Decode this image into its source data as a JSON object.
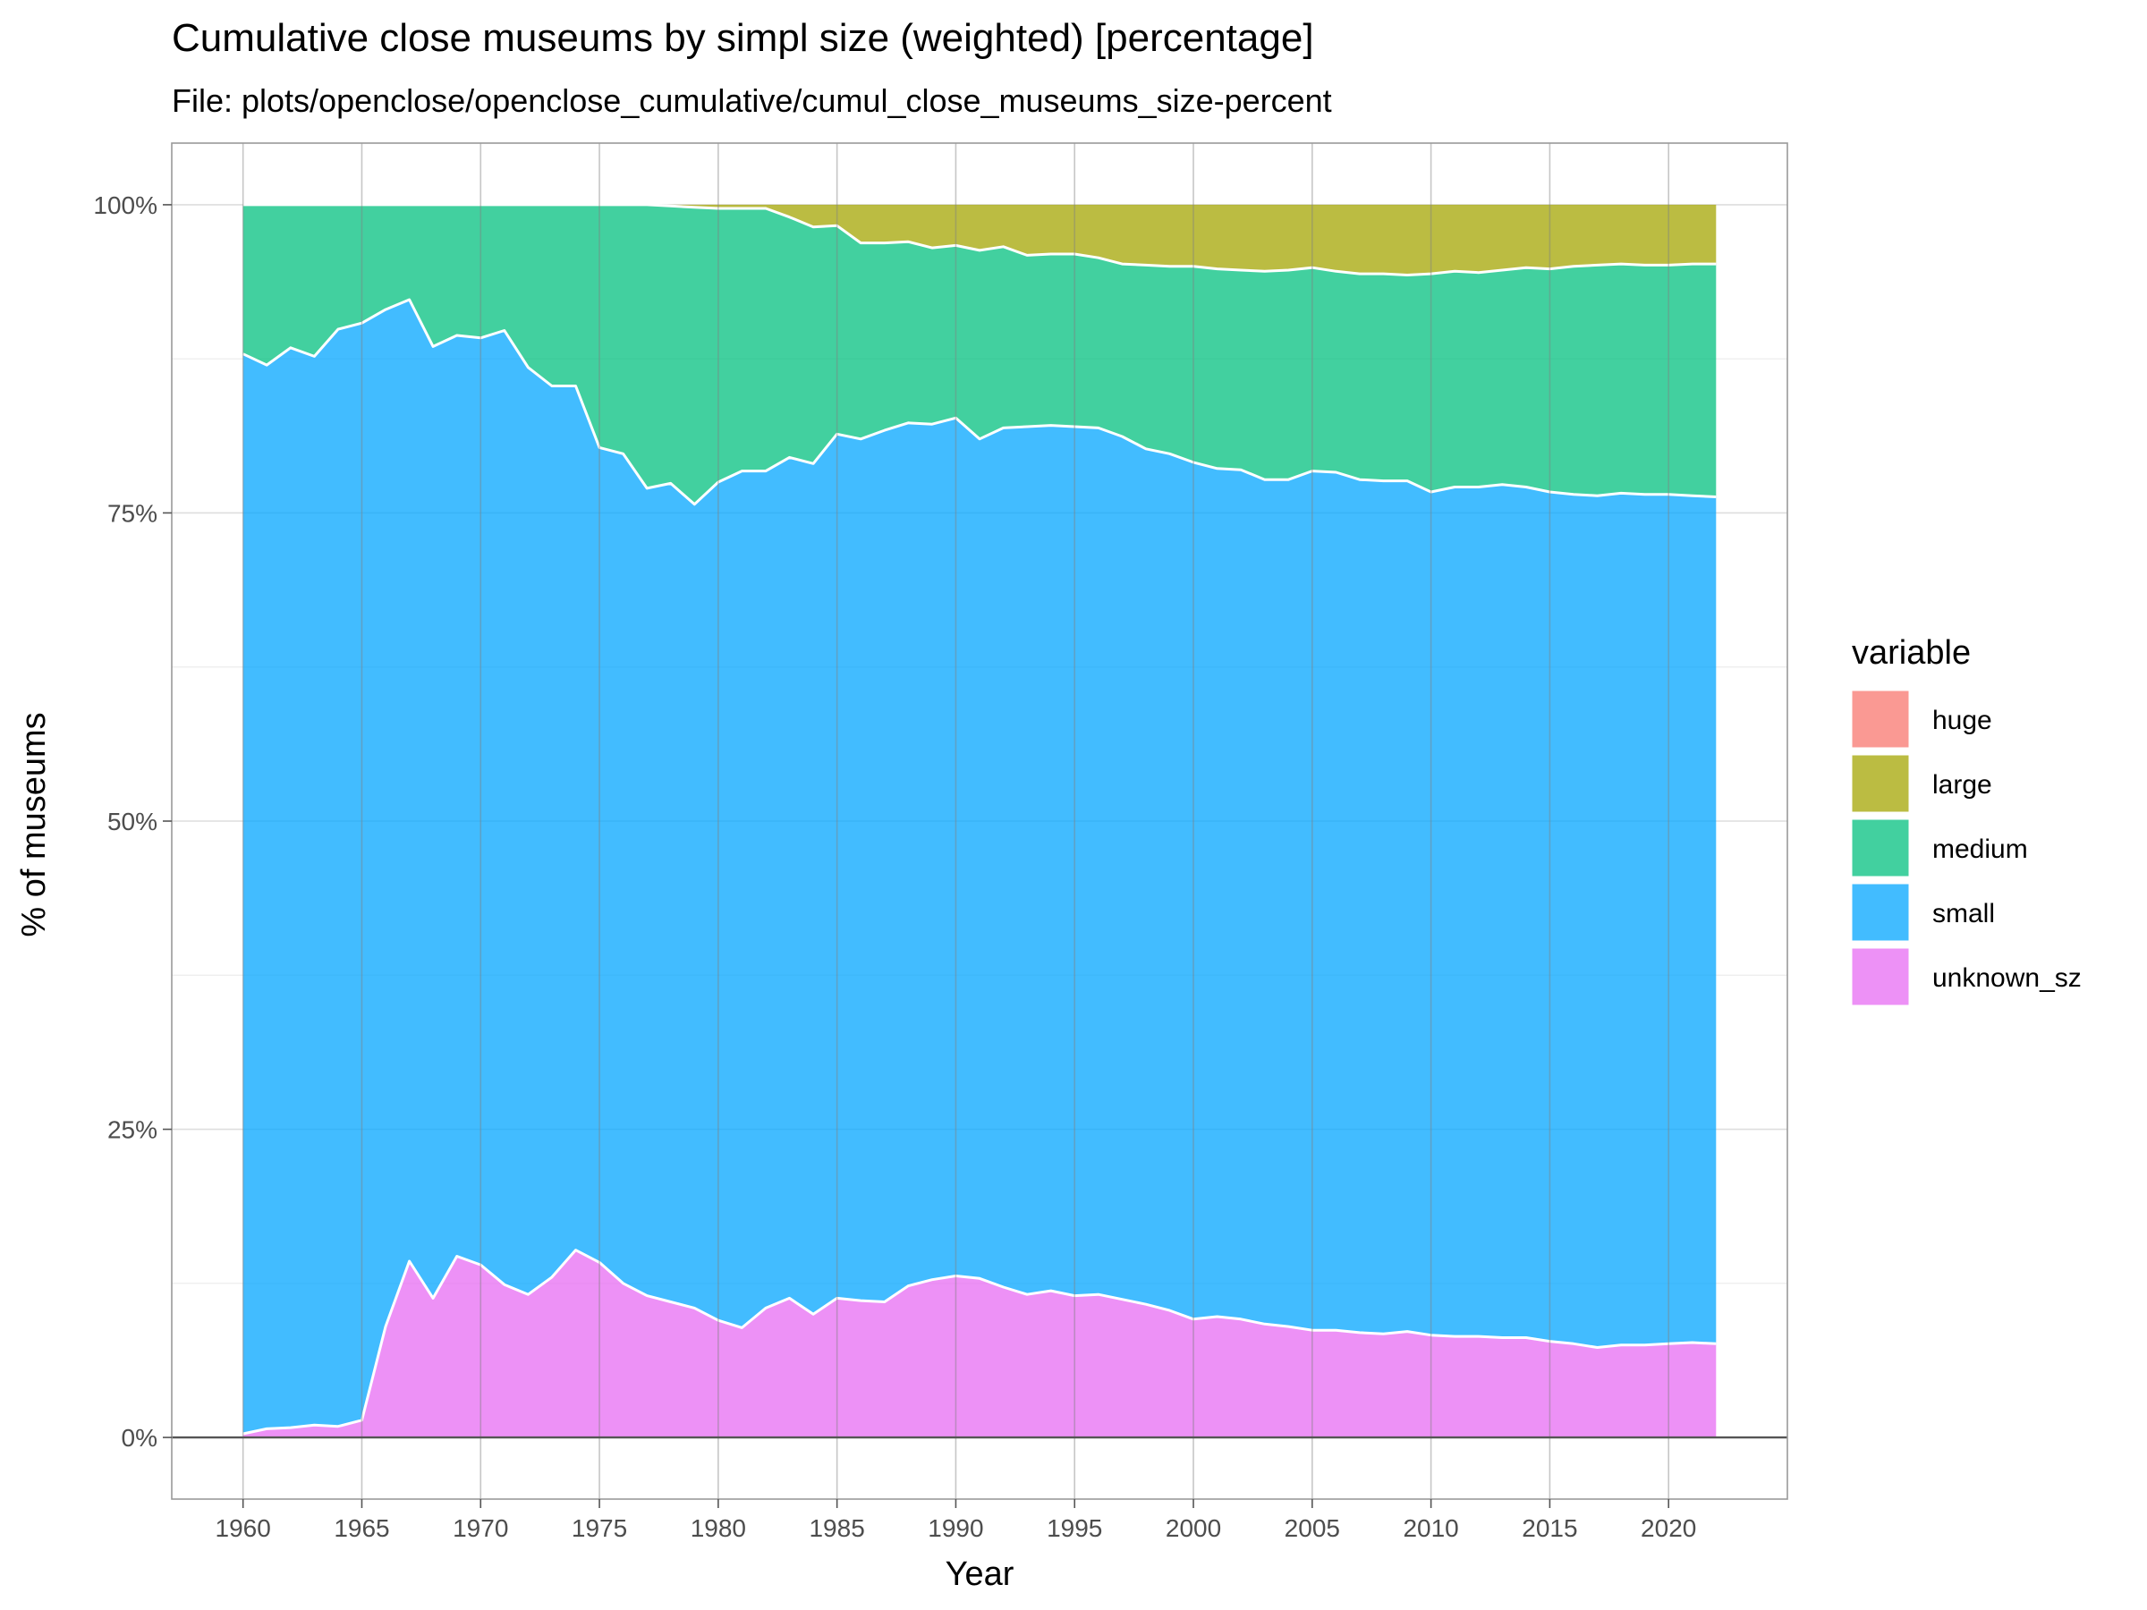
{
  "chart_data": {
    "type": "area",
    "stacked": true,
    "normalized": true,
    "title": "Cumulative close museums by simpl size (weighted) [percentage]",
    "subtitle": "File: plots/openclose/openclose_cumulative/cumul_close_museums_size-percent",
    "xlabel": "Year",
    "ylabel": "% of museums",
    "xlim": [
      1957,
      2025
    ],
    "ylim": [
      -5,
      105
    ],
    "x_ticks": [
      1960,
      1965,
      1970,
      1975,
      1980,
      1985,
      1990,
      1995,
      2000,
      2005,
      2010,
      2015,
      2020
    ],
    "y_ticks": [
      0,
      25,
      50,
      75,
      100
    ],
    "y_tick_labels": [
      "0%",
      "25%",
      "50%",
      "75%",
      "100%"
    ],
    "legend_title": "variable",
    "legend_position": "right",
    "colors": {
      "huge": "#F8766D",
      "large": "#A3A500",
      "medium": "#00BF7D",
      "small": "#00A5FF",
      "unknown_sz": "#E76BF3"
    },
    "legend_order": [
      "huge",
      "large",
      "medium",
      "small",
      "unknown_sz"
    ],
    "x": [
      1960,
      1961,
      1962,
      1963,
      1964,
      1965,
      1966,
      1967,
      1968,
      1969,
      1970,
      1971,
      1972,
      1973,
      1974,
      1975,
      1976,
      1977,
      1978,
      1979,
      1980,
      1981,
      1982,
      1983,
      1984,
      1985,
      1986,
      1987,
      1988,
      1989,
      1990,
      1991,
      1992,
      1993,
      1994,
      1995,
      1996,
      1997,
      1998,
      1999,
      2000,
      2001,
      2002,
      2003,
      2004,
      2005,
      2006,
      2007,
      2008,
      2009,
      2010,
      2011,
      2012,
      2013,
      2014,
      2015,
      2016,
      2017,
      2018,
      2019,
      2020,
      2021,
      2022
    ],
    "cumulative_boundaries": {
      "unknown_sz_top": [
        0.3,
        0.7,
        0.8,
        1.0,
        0.9,
        1.4,
        9.0,
        14.3,
        11.3,
        14.7,
        14.0,
        12.4,
        11.6,
        13.0,
        15.2,
        14.2,
        12.5,
        11.5,
        11.0,
        10.5,
        9.5,
        8.9,
        10.5,
        11.3,
        10.0,
        11.3,
        11.1,
        11.0,
        12.3,
        12.8,
        13.1,
        12.9,
        12.2,
        11.6,
        11.9,
        11.5,
        11.6,
        11.2,
        10.8,
        10.3,
        9.6,
        9.8,
        9.6,
        9.2,
        9.0,
        8.7,
        8.7,
        8.5,
        8.4,
        8.6,
        8.3,
        8.2,
        8.2,
        8.1,
        8.1,
        7.8,
        7.6,
        7.3,
        7.5,
        7.5,
        7.6,
        7.7,
        7.6
      ],
      "small_top": [
        87.9,
        87.0,
        88.4,
        87.7,
        89.9,
        90.4,
        91.5,
        92.3,
        88.5,
        89.4,
        89.2,
        89.8,
        86.8,
        85.3,
        85.3,
        80.3,
        79.8,
        77.0,
        77.4,
        75.7,
        77.5,
        78.4,
        78.4,
        79.5,
        79.0,
        81.4,
        81.0,
        81.7,
        82.3,
        82.2,
        82.7,
        81.0,
        81.9,
        82.0,
        82.1,
        82.0,
        81.9,
        81.2,
        80.2,
        79.8,
        79.1,
        78.6,
        78.5,
        77.7,
        77.7,
        78.4,
        78.3,
        77.7,
        77.6,
        77.6,
        76.7,
        77.1,
        77.1,
        77.3,
        77.1,
        76.7,
        76.5,
        76.4,
        76.6,
        76.5,
        76.5,
        76.4,
        76.3
      ],
      "medium_top": [
        100,
        100,
        100,
        100,
        100,
        100,
        100,
        100,
        100,
        100,
        100,
        100,
        100,
        100,
        100,
        100,
        100,
        100,
        99.9,
        99.8,
        99.7,
        99.7,
        99.7,
        99.0,
        98.2,
        98.3,
        96.9,
        96.9,
        97.0,
        96.5,
        96.7,
        96.3,
        96.6,
        95.9,
        96.0,
        96.0,
        95.7,
        95.2,
        95.1,
        95.0,
        95.0,
        94.8,
        94.7,
        94.6,
        94.7,
        94.9,
        94.6,
        94.4,
        94.4,
        94.3,
        94.4,
        94.6,
        94.5,
        94.7,
        94.9,
        94.8,
        95.0,
        95.1,
        95.2,
        95.1,
        95.1,
        95.2,
        95.2
      ],
      "large_top": [
        100,
        100,
        100,
        100,
        100,
        100,
        100,
        100,
        100,
        100,
        100,
        100,
        100,
        100,
        100,
        100,
        100,
        100,
        100,
        100,
        100,
        100,
        100,
        100,
        100,
        100,
        100,
        100,
        100,
        100,
        100,
        100,
        100,
        100,
        100,
        100,
        100,
        100,
        100,
        100,
        100,
        100,
        100,
        100,
        100,
        100,
        100,
        100,
        100,
        100,
        100,
        100,
        100,
        100,
        100,
        100,
        100,
        100,
        100,
        100,
        100,
        100,
        100
      ],
      "huge_top": [
        100,
        100,
        100,
        100,
        100,
        100,
        100,
        100,
        100,
        100,
        100,
        100,
        100,
        100,
        100,
        100,
        100,
        100,
        100,
        100,
        100,
        100,
        100,
        100,
        100,
        100,
        100,
        100,
        100,
        100,
        100,
        100,
        100,
        100,
        100,
        100,
        100,
        100,
        100,
        100,
        100,
        100,
        100,
        100,
        100,
        100,
        100,
        100,
        100,
        100,
        100,
        100,
        100,
        100,
        100,
        100,
        100,
        100,
        100,
        100,
        100,
        100,
        100
      ]
    }
  }
}
